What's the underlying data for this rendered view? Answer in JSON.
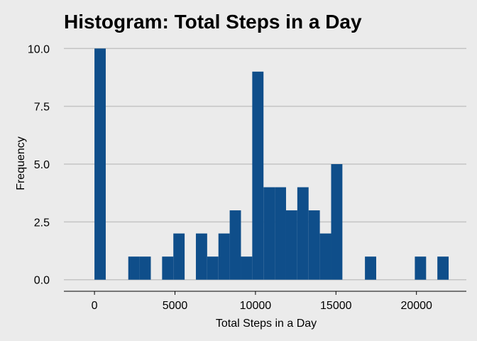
{
  "chart_data": {
    "type": "bar",
    "title": "Histogram: Total Steps in a Day",
    "xlabel": "Total Steps in a Day",
    "ylabel": "Frequency",
    "bin_width": 700,
    "bins": [
      {
        "x": 350,
        "count": 10
      },
      {
        "x": 2450,
        "count": 1
      },
      {
        "x": 3150,
        "count": 1
      },
      {
        "x": 4550,
        "count": 1
      },
      {
        "x": 5250,
        "count": 2
      },
      {
        "x": 6650,
        "count": 2
      },
      {
        "x": 7350,
        "count": 1
      },
      {
        "x": 8050,
        "count": 2
      },
      {
        "x": 8750,
        "count": 3
      },
      {
        "x": 9450,
        "count": 1
      },
      {
        "x": 10150,
        "count": 9
      },
      {
        "x": 10850,
        "count": 4
      },
      {
        "x": 11550,
        "count": 4
      },
      {
        "x": 12250,
        "count": 3
      },
      {
        "x": 12950,
        "count": 4
      },
      {
        "x": 13650,
        "count": 3
      },
      {
        "x": 14350,
        "count": 2
      },
      {
        "x": 15050,
        "count": 5
      },
      {
        "x": 17150,
        "count": 1
      },
      {
        "x": 20250,
        "count": 1
      },
      {
        "x": 21650,
        "count": 1
      }
    ],
    "x_ticks": [
      0,
      5000,
      10000,
      15000,
      20000
    ],
    "x_tick_labels": [
      "0",
      "5000",
      "10000",
      "15000",
      "20000"
    ],
    "y_ticks": [
      0,
      2.5,
      5,
      7.5,
      10
    ],
    "y_tick_labels": [
      "0.0",
      "2.5",
      "5.0",
      "7.5",
      "10.0"
    ],
    "xlim": [
      -1900,
      23100
    ],
    "ylim": [
      -0.5,
      10.5
    ],
    "grid": "horizontal",
    "colors": {
      "bar": "#0f4e8a",
      "background": "#ebebeb",
      "grid": "#c4c4c4",
      "axis": "#000000"
    }
  }
}
